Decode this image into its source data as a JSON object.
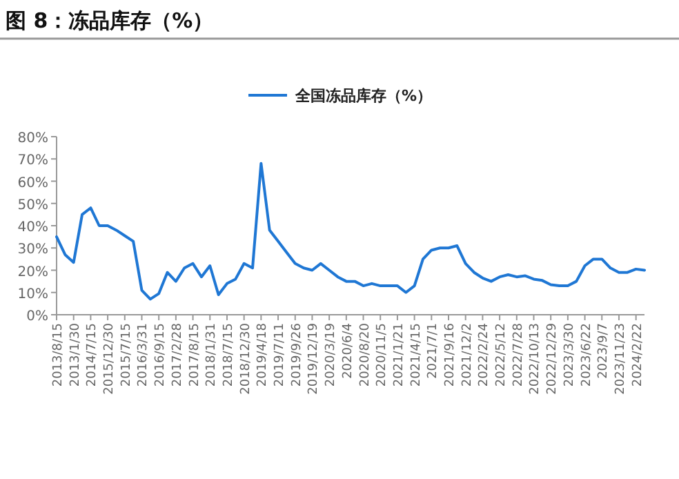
{
  "chart_data": {
    "type": "line",
    "title": "图 8：冻品库存（%）",
    "categories": [
      "2013/8/15",
      null,
      "2013/1/30",
      null,
      "2014/7/15",
      null,
      "2015/12/30",
      null,
      "2015/7/15",
      null,
      "2016/3/31",
      null,
      "2016/9/15",
      null,
      "2017/2/28",
      null,
      "2017/8/15",
      null,
      "2018/1/31",
      null,
      "2018/7/15",
      null,
      "2018/12/30",
      null,
      "2019/4/18",
      null,
      "2019/7/11",
      null,
      "2019/9/26",
      null,
      "2019/12/19",
      null,
      "2020/3/19",
      null,
      "2020/6/4",
      null,
      "2020/8/20",
      null,
      "2020/11/5",
      null,
      "2021/1/21",
      null,
      "2021/4/15",
      null,
      "2021/7/1",
      null,
      "2021/9/16",
      null,
      "2021/12/2",
      null,
      "2022/2/24",
      null,
      "2022/5/12",
      null,
      "2022/7/28",
      null,
      "2022/10/13",
      null,
      "2022/12/29",
      null,
      "2023/3/30",
      null,
      "2023/6/22",
      null,
      "2023/9/7",
      null,
      "2023/11/23",
      null,
      "2024/2/22",
      null
    ],
    "series": [
      {
        "name": "全国冻品库存（%）",
        "color": "#1f77d4",
        "values": [
          35,
          27,
          23.5,
          45,
          48,
          40,
          40,
          38,
          35.5,
          33,
          11,
          7,
          9.5,
          19,
          15,
          21,
          23,
          17,
          22,
          9,
          14,
          16,
          23,
          21,
          68,
          38,
          33,
          28,
          23,
          21,
          20,
          23,
          20,
          17,
          15,
          15,
          13,
          14,
          13,
          13,
          13,
          10,
          13,
          25,
          29,
          30,
          30,
          31,
          23,
          19,
          16.5,
          15,
          17,
          18,
          17,
          17.5,
          16,
          15.4,
          13.5,
          13,
          13,
          15,
          22,
          25,
          25,
          21,
          19,
          19,
          20.5,
          20
        ]
      }
    ],
    "ylim": [
      0,
      80
    ],
    "yticks": [
      {
        "value": 0,
        "label": "0%"
      },
      {
        "value": 10,
        "label": "10%"
      },
      {
        "value": 20,
        "label": "20%"
      },
      {
        "value": 30,
        "label": "30%"
      },
      {
        "value": 40,
        "label": "40%"
      },
      {
        "value": 50,
        "label": "50%"
      },
      {
        "value": 60,
        "label": "60%"
      },
      {
        "value": 70,
        "label": "70%"
      },
      {
        "value": 80,
        "label": "80%"
      }
    ],
    "legend": "top",
    "grid": false
  }
}
